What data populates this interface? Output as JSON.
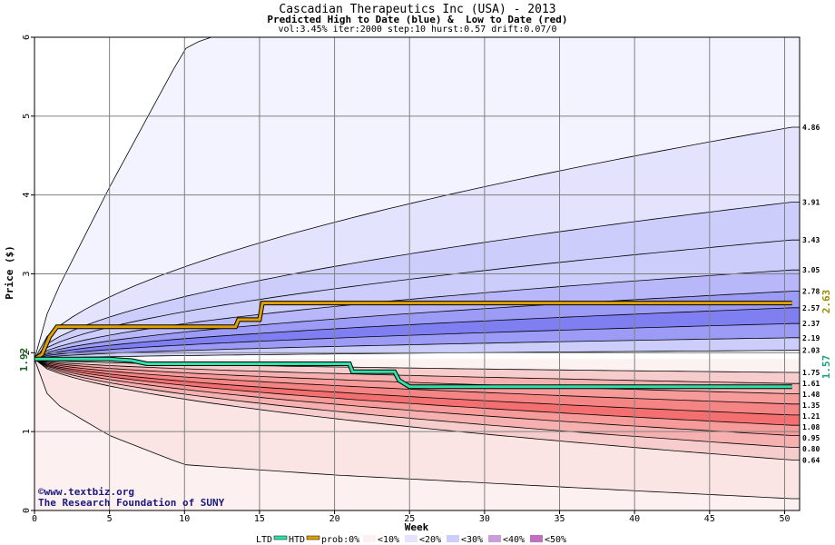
{
  "header": {
    "title": "Cascadian Therapeutics Inc (USA) - 2013",
    "subtitle": "Predicted High to Date (blue) &  Low to Date (red)",
    "params": "vol:3.45% iter:2000 step:10 hurst:0.57 drift:0.07/0"
  },
  "credit": {
    "line1": "©www.textbiz.org",
    "line2": "The Research Foundation of SUNY"
  },
  "colors": {
    "background_band": "#fdf0f0",
    "upper_bands": [
      "#f3f3ff",
      "#e3e3fd",
      "#cdcdfb",
      "#b7b7f9",
      "#9c9cf6",
      "#7f7ff2"
    ],
    "lower_bands": [
      "#f6cccc",
      "#f7b0b0",
      "#f69a9a",
      "#f58484",
      "#f47070"
    ],
    "htd_line": "#e0a000",
    "ltd_line": "#30e0a8",
    "start_label": "#206020",
    "htd_label": "#9a8a00",
    "ltd_label": "#20a080"
  },
  "chart_data": {
    "type": "area",
    "title": "Cascadian Therapeutics Inc (USA) - 2013",
    "xlabel": "Week",
    "ylabel": "Price ($)",
    "xlim": [
      0,
      51
    ],
    "ylim": [
      0,
      6
    ],
    "x_ticks": [
      0,
      5,
      10,
      15,
      20,
      25,
      30,
      35,
      40,
      45,
      50
    ],
    "y_ticks": [
      0,
      1,
      2,
      3,
      4,
      5,
      6
    ],
    "grid": true,
    "start_price": 1.92,
    "start_label": "1.92",
    "htd_final_label": "2.63",
    "ltd_final_label": "1.57",
    "right_labels": [
      "4.86",
      "3.91",
      "3.43",
      "3.05",
      "2.78",
      "2.57",
      "2.37",
      "2.19",
      "2.03",
      "1.75",
      "1.61",
      "1.48",
      "1.35",
      "1.21",
      "1.08",
      "0.95",
      "0.80",
      "0.64"
    ],
    "upper_band_ends": [
      4.86,
      3.91,
      3.43,
      3.05,
      2.78,
      2.57,
      2.37,
      2.19,
      2.03
    ],
    "lower_band_ends": [
      1.75,
      1.61,
      1.48,
      1.35,
      1.21,
      1.08,
      0.95,
      0.8,
      0.64
    ],
    "outer_upper_envelope": {
      "x": [
        0,
        1,
        5,
        10,
        11.5
      ],
      "y": [
        1.92,
        2.6,
        4.1,
        5.85,
        6.0
      ]
    },
    "outer_lower_envelope": {
      "x": [
        0,
        1,
        5,
        10,
        20,
        30,
        40,
        50.5
      ],
      "y": [
        1.92,
        1.4,
        0.95,
        0.58,
        0.45,
        0.35,
        0.25,
        0.15
      ]
    },
    "series": [
      {
        "name": "HTD",
        "x": [
          0,
          0.5,
          1,
          1.5,
          5,
          10,
          13.4,
          13.6,
          15,
          15.2,
          35,
          50.5
        ],
        "y": [
          1.92,
          1.98,
          2.2,
          2.33,
          2.33,
          2.33,
          2.33,
          2.42,
          2.42,
          2.63,
          2.63,
          2.63
        ]
      },
      {
        "name": "LTD",
        "x": [
          0,
          5,
          6.5,
          7.5,
          21,
          21.2,
          24,
          24.3,
          25,
          50.5
        ],
        "y": [
          1.92,
          1.92,
          1.9,
          1.86,
          1.86,
          1.76,
          1.76,
          1.65,
          1.57,
          1.57
        ]
      }
    ],
    "legend": [
      "LTD",
      "HTD",
      "prob:0%",
      "<10%",
      "<20%",
      "<30%",
      "<40%",
      "<50%"
    ]
  }
}
